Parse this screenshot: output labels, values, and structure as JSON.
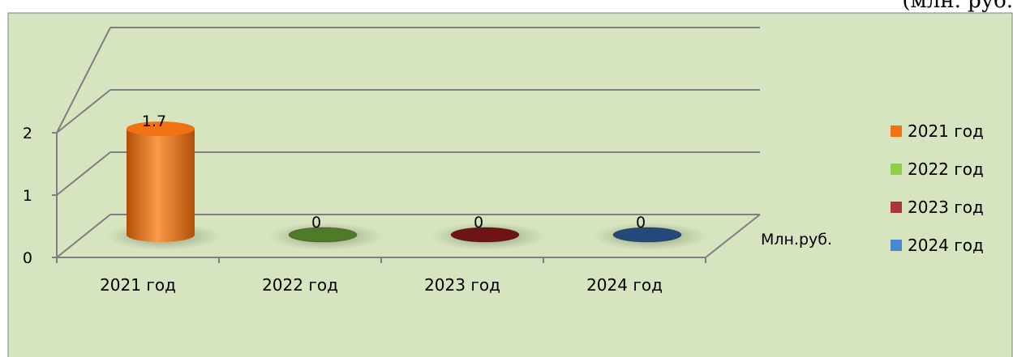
{
  "page": {
    "corner_caption": "(млн. руб."
  },
  "colors": {
    "chart_background": "#d6e4bf",
    "chart_border": "#7f7f7f",
    "grid": "#7f7f7f"
  },
  "chart_data": {
    "type": "bar",
    "style": "3d-cylinder",
    "categories": [
      "2021 год",
      "2022 год",
      "2023 год",
      "2024 год"
    ],
    "series": [
      {
        "name": "2021 год",
        "values": [
          1.7,
          0,
          0,
          0
        ],
        "color": "#f07213",
        "color_dark": "#b24f08",
        "color_light": "#fb9a48"
      }
    ],
    "per_category_colors": [
      "#f07213",
      "#4e7a2a",
      "#6e1414",
      "#234a78"
    ],
    "legend": [
      {
        "label": "2021 год",
        "color": "#f07213"
      },
      {
        "label": "2022 год",
        "color": "#8fce4a"
      },
      {
        "label": "2023 год",
        "color": "#a83838"
      },
      {
        "label": "2024 год",
        "color": "#4a86d4"
      }
    ],
    "data_labels": [
      "1.7",
      "0",
      "0",
      "0"
    ],
    "yticks": [
      "0",
      "1",
      "2"
    ],
    "ylim": [
      0,
      2
    ],
    "depth_axis_label": "Млн.руб.",
    "legend_position": "right",
    "grid": true,
    "title": "",
    "xlabel": "",
    "ylabel": ""
  }
}
